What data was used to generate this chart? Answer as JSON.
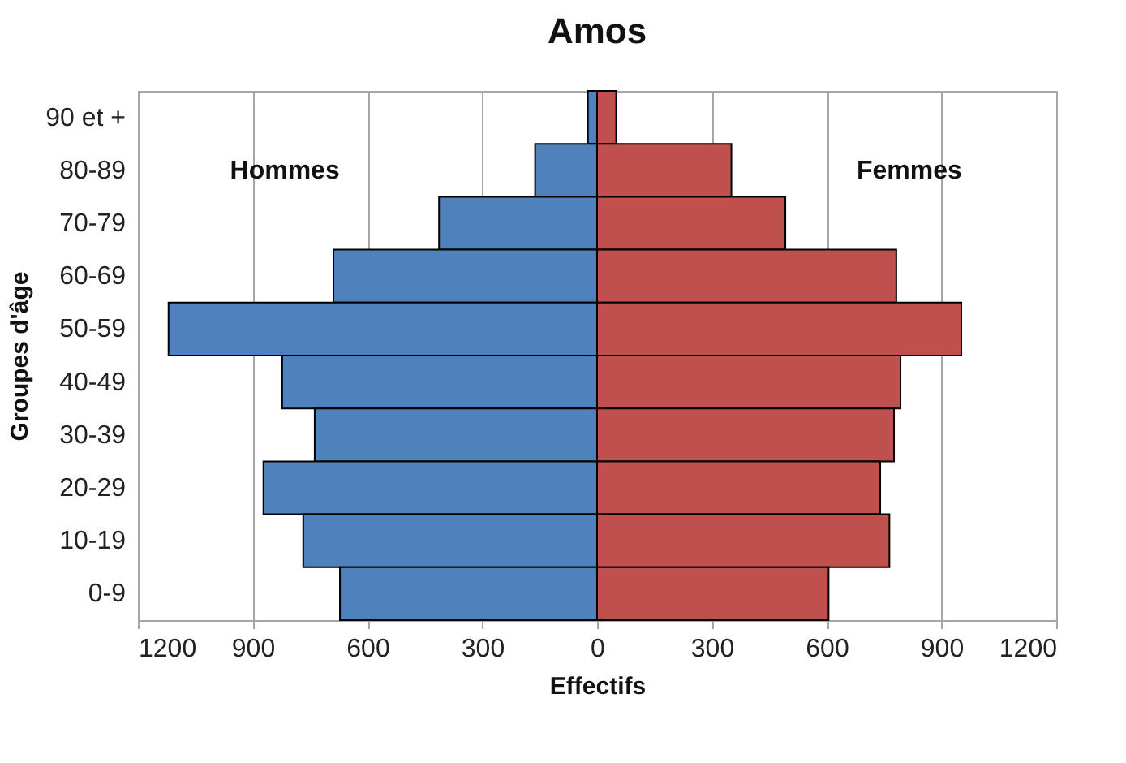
{
  "chart_data": {
    "type": "bar",
    "orientation": "horizontal",
    "title": "Amos",
    "xlabel": "Effectifs",
    "ylabel": "Groupes d'âge",
    "categories": [
      "90 et +",
      "80-89",
      "70-79",
      "60-69",
      "50-59",
      "40-49",
      "30-39",
      "20-29",
      "10-19",
      "0-9"
    ],
    "series": [
      {
        "name": "Hommes",
        "color": "#4f81bd",
        "values": [
          -24,
          -162,
          -413,
          -689,
          -1120,
          -823,
          -738,
          -872,
          -768,
          -672
        ]
      },
      {
        "name": "Femmes",
        "color": "#c0504d",
        "values": [
          50,
          351,
          492,
          782,
          952,
          793,
          776,
          740,
          764,
          605
        ]
      }
    ],
    "xlim": [
      -1200,
      1200
    ],
    "xticks": [
      {
        "value": -1200,
        "label": "1200"
      },
      {
        "value": -900,
        "label": "900"
      },
      {
        "value": -600,
        "label": "600"
      },
      {
        "value": -300,
        "label": "300"
      },
      0,
      300,
      600,
      900,
      1200
    ],
    "stacked": true,
    "grid": "x",
    "legend": false
  }
}
